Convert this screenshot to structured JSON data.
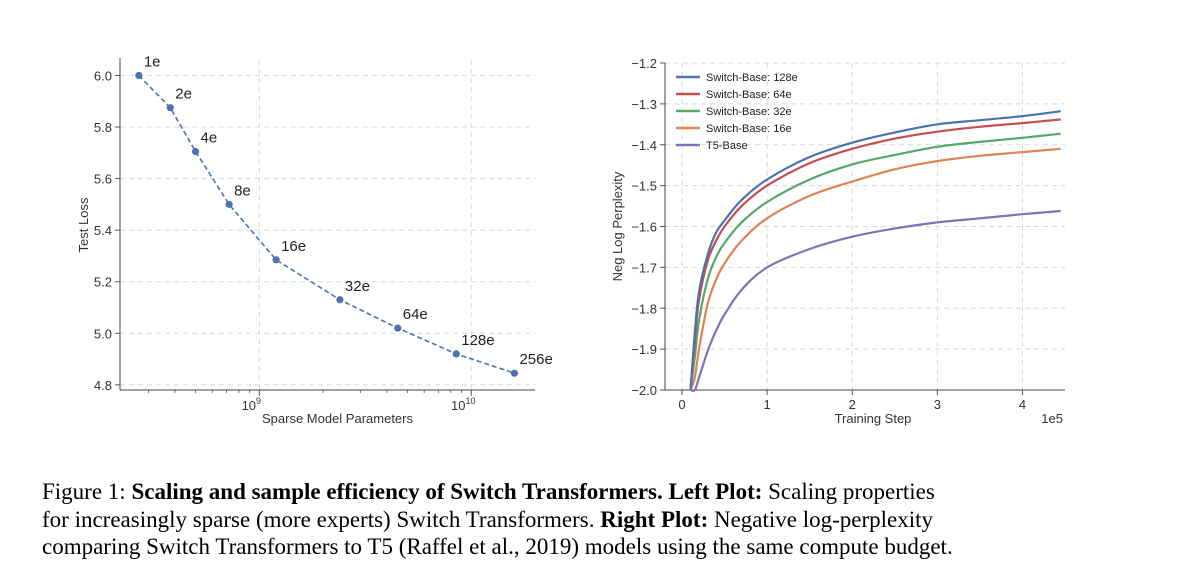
{
  "chart_data": [
    {
      "type": "line",
      "title": "",
      "xlabel": "Sparse Model Parameters",
      "ylabel": "Test Loss",
      "x_scale": "log",
      "xlim": [
        220000000,
        20000000000
      ],
      "ylim": [
        4.78,
        6.06
      ],
      "x_ticks": [
        {
          "value": 1000000000,
          "base": "10",
          "exp": "9"
        },
        {
          "value": 10000000000,
          "base": "10",
          "exp": "10"
        }
      ],
      "y_ticks": [
        {
          "value": 4.8,
          "label": "4.8"
        },
        {
          "value": 5.0,
          "label": "5.0"
        },
        {
          "value": 5.2,
          "label": "5.2"
        },
        {
          "value": 5.4,
          "label": "5.4"
        },
        {
          "value": 5.6,
          "label": "5.6"
        },
        {
          "value": 5.8,
          "label": "5.8"
        },
        {
          "value": 6.0,
          "label": "6.0"
        }
      ],
      "grid": true,
      "line_style": "dashed",
      "color": "#4C72B0",
      "points": [
        {
          "x": 270000000,
          "y": 6.0,
          "label": "1e"
        },
        {
          "x": 380000000,
          "y": 5.875,
          "label": "2e"
        },
        {
          "x": 500000000,
          "y": 5.705,
          "label": "4e"
        },
        {
          "x": 720000000,
          "y": 5.5,
          "label": "8e"
        },
        {
          "x": 1200000000,
          "y": 5.285,
          "label": "16e"
        },
        {
          "x": 2400000000,
          "y": 5.13,
          "label": "32e"
        },
        {
          "x": 4500000000,
          "y": 5.02,
          "label": "64e"
        },
        {
          "x": 8500000000,
          "y": 4.92,
          "label": "128e"
        },
        {
          "x": 16000000000,
          "y": 4.845,
          "label": "256e"
        }
      ]
    },
    {
      "type": "line",
      "title": "",
      "xlabel": "Training Step",
      "ylabel": "Neg Log Perplexity",
      "x_offset_label": "1e5",
      "xlim": [
        -0.2,
        4.5
      ],
      "ylim": [
        -2.0,
        -1.2
      ],
      "x_ticks": [
        {
          "value": 0,
          "label": "0"
        },
        {
          "value": 1,
          "label": "1"
        },
        {
          "value": 2,
          "label": "2"
        },
        {
          "value": 3,
          "label": "3"
        },
        {
          "value": 4,
          "label": "4"
        }
      ],
      "y_ticks": [
        {
          "value": -1.2,
          "label": "−1.2"
        },
        {
          "value": -1.3,
          "label": "−1.3"
        },
        {
          "value": -1.4,
          "label": "−1.4"
        },
        {
          "value": -1.5,
          "label": "−1.5"
        },
        {
          "value": -1.6,
          "label": "−1.6"
        },
        {
          "value": -1.7,
          "label": "−1.7"
        },
        {
          "value": -1.8,
          "label": "−1.8"
        },
        {
          "value": -1.9,
          "label": "−1.9"
        },
        {
          "value": -2.0,
          "label": "−2.0"
        }
      ],
      "grid": true,
      "legend_position": "top-left",
      "x": [
        0.1,
        0.15,
        0.2,
        0.3,
        0.4,
        0.5,
        0.7,
        1.0,
        1.5,
        2.0,
        2.5,
        3.0,
        3.5,
        4.0,
        4.45
      ],
      "series": [
        {
          "name": "Switch-Base: 128e",
          "color": "#4C72B0",
          "values": [
            -2.0,
            -1.86,
            -1.76,
            -1.67,
            -1.615,
            -1.585,
            -1.535,
            -1.485,
            -1.43,
            -1.395,
            -1.37,
            -1.35,
            -1.34,
            -1.33,
            -1.318
          ]
        },
        {
          "name": "Switch-Base: 64e",
          "color": "#C44E52",
          "values": [
            -2.0,
            -1.88,
            -1.78,
            -1.685,
            -1.635,
            -1.6,
            -1.55,
            -1.5,
            -1.445,
            -1.41,
            -1.385,
            -1.368,
            -1.356,
            -1.347,
            -1.338
          ]
        },
        {
          "name": "Switch-Base: 32e",
          "color": "#55A868",
          "values": [
            -2.0,
            -1.92,
            -1.83,
            -1.73,
            -1.675,
            -1.64,
            -1.59,
            -1.54,
            -1.485,
            -1.448,
            -1.425,
            -1.405,
            -1.393,
            -1.383,
            -1.373
          ]
        },
        {
          "name": "Switch-Base: 16e",
          "color": "#DD8452",
          "values": [
            -2.0,
            -1.97,
            -1.9,
            -1.79,
            -1.73,
            -1.69,
            -1.635,
            -1.58,
            -1.525,
            -1.49,
            -1.46,
            -1.44,
            -1.427,
            -1.418,
            -1.41
          ]
        },
        {
          "name": "T5-Base",
          "color": "#8172B2",
          "values": [
            -2.0,
            -2.0,
            -1.97,
            -1.905,
            -1.855,
            -1.815,
            -1.755,
            -1.7,
            -1.655,
            -1.625,
            -1.605,
            -1.59,
            -1.58,
            -1.57,
            -1.562
          ]
        }
      ]
    }
  ],
  "caption": {
    "line1": {
      "a": "Figure 1: ",
      "b": "Scaling and sample efficiency of Switch Transformers. Left Plot:",
      "c": " Scaling properties"
    },
    "line2": {
      "a": "for increasingly sparse (more experts) Switch Transformers. ",
      "b": "Right Plot:",
      "c": " Negative log-perplexity"
    },
    "line3": {
      "a": "comparing Switch Transformers to T5 (Raffel et al., 2019) models using the same compute budget."
    }
  }
}
